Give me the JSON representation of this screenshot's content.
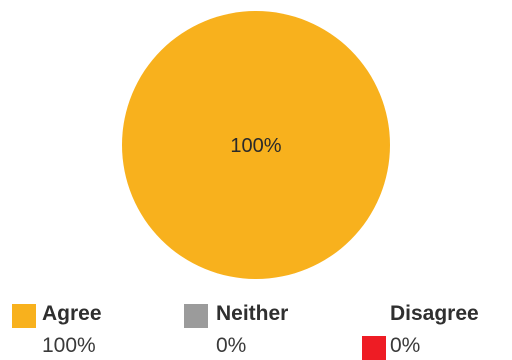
{
  "chart_data": {
    "type": "pie",
    "title": "",
    "categories": [
      "Agree",
      "Neither",
      "Disagree"
    ],
    "values": [
      100,
      0,
      0
    ],
    "value_labels": [
      "100%",
      "0%",
      "0%"
    ],
    "slice_label": "100%",
    "colors": [
      "#f8b11d",
      "#9b9b9b",
      "#ee1c24"
    ],
    "legend_placement": "bottom"
  }
}
